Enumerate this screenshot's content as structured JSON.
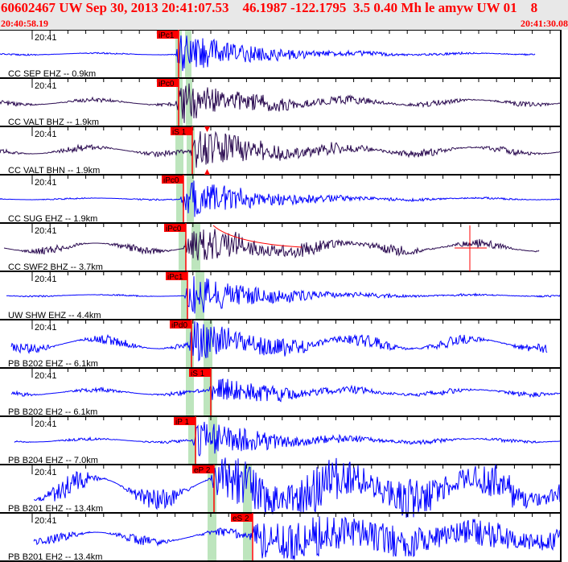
{
  "header": {
    "title": "60602467 UW Sep 30, 2013 20:41:07.53    46.1987 -122.1795  3.5 0.40 Mh le amyw UW 01    8",
    "start_time": "20:40:58.19",
    "end_time": "20:41:30.08"
  },
  "chart_data": {
    "type": "line",
    "title": "60602467 UW Sep 30, 2013 20:41:07.53    46.1987 -122.1795  3.5 0.40 Mh le amyw UW 01    8",
    "xrange": [
      "20:40:58.19",
      "20:41:30.08"
    ],
    "tick_label": "20:41",
    "traces": [
      {
        "label": "CC SEP EHZ -- 0.9km",
        "pick": "iPc1",
        "color": "#0000ff"
      },
      {
        "label": "CC VALT BHZ -- 1.9km",
        "pick": "iPc0",
        "color": "#2a0a50"
      },
      {
        "label": "CC VALT BHN -- 1.9km",
        "pick": "iS 1",
        "color": "#2a0a50"
      },
      {
        "label": "CC SUG EHZ -- 1.9km",
        "pick": "iPc0",
        "color": "#0000ff"
      },
      {
        "label": "CC SWF2 BHZ -- 3.7km",
        "pick": "iPc0",
        "color": "#2a0a50"
      },
      {
        "label": "UW SHW EHZ -- 4.4km",
        "pick": "iPc1",
        "color": "#0000ff"
      },
      {
        "label": "PB B202 EHZ -- 6.1km",
        "pick": "iPd0",
        "color": "#0000ff"
      },
      {
        "label": "PB B202 EH2 -- 6.1km",
        "pick": "iS 1",
        "color": "#0000ff"
      },
      {
        "label": "PB B204 EHZ -- 7.0km",
        "pick": "iP 1",
        "color": "#0000ff"
      },
      {
        "label": "PB B201 EHZ -- 13.4km",
        "pick": "eP 2",
        "color": "#0000ff"
      },
      {
        "label": "PB B201 EH2 -- 13.4km",
        "pick": "eS 2",
        "color": "#0000ff"
      }
    ]
  },
  "colors": {
    "pick": "#ff0000",
    "window": "#bde5bd",
    "header_text": "#ff0000"
  }
}
